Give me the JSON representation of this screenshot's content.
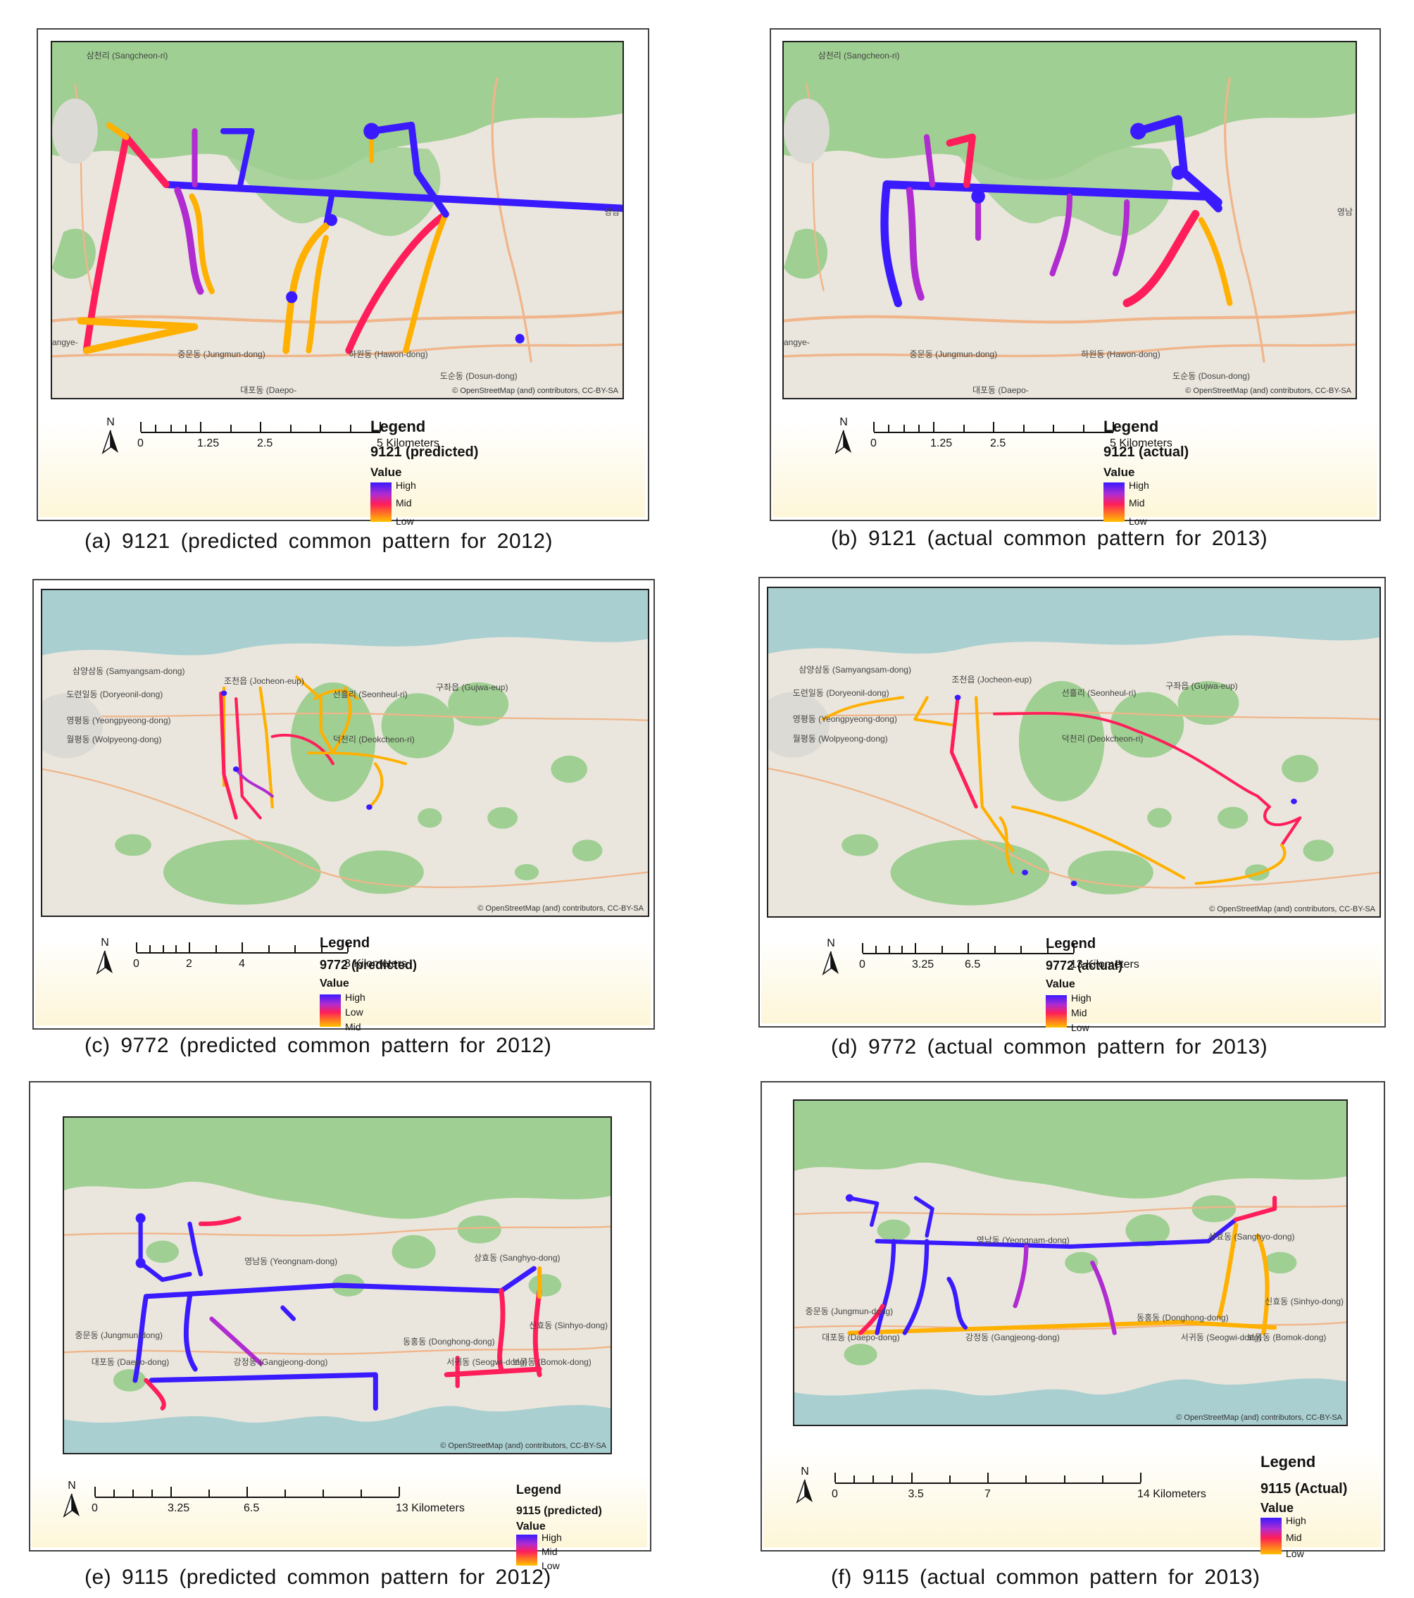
{
  "figures": [
    {
      "id": "a",
      "caption": "(a)  9121  (predicted  common  pattern  for  2012)",
      "legend_title": "Legend",
      "layer_name": "9121 (predicted)",
      "value_label": "Value",
      "ramp_labels": [
        "High",
        "Mid",
        "Low"
      ],
      "scale_labels": [
        "0",
        "1.25",
        "2.5",
        "5 Kilometers"
      ],
      "attribution": "© OpenStreetMap (and) contributors, CC-BY-SA",
      "places": [
        "삼천리 (Sangcheon-ri)",
        "중문동 (Jungmun-dong)",
        "하원동 (Hawon-dong)",
        "도순동 (Dosun-dong)",
        "대포동 (Daepo-",
        "영남",
        "angye-"
      ]
    },
    {
      "id": "b",
      "caption": "(b)  9121  (actual  common  pattern  for  2013)",
      "legend_title": "Legend",
      "layer_name": "9121 (actual)",
      "value_label": "Value",
      "ramp_labels": [
        "High",
        "Mid",
        "Low"
      ],
      "scale_labels": [
        "0",
        "1.25",
        "2.5",
        "5 Kilometers"
      ],
      "attribution": "© OpenStreetMap (and) contributors, CC-BY-SA",
      "places": [
        "삼천리 (Sangcheon-ri)",
        "중문동 (Jungmun-dong)",
        "하원동 (Hawon-dong)",
        "도순동 (Dosun-dong)",
        "대포동 (Daepo-",
        "영남",
        "angye-"
      ]
    },
    {
      "id": "c",
      "caption": "(c)  9772  (predicted  common  pattern  for  2012)",
      "legend_title": "Legend",
      "layer_name": "9772 (predicted)",
      "value_label": "Value",
      "ramp_labels": [
        "High",
        "Low",
        "Mid"
      ],
      "scale_labels": [
        "0",
        "2",
        "4",
        "8 Kilometers"
      ],
      "attribution": "© OpenStreetMap (and) contributors, CC-BY-SA",
      "places": [
        "삼양삼동 (Samyangsam-dong)",
        "도련일동 (Doryeonil-dong)",
        "영평동 (Yeongpyeong-dong)",
        "월평동 (Wolpyeong-dong)",
        "조천읍 (Jocheon-eup)",
        "구좌읍 (Gujwa-eup)",
        "선흘리 (Seonheul-ri)",
        "덕천리 (Deokcheon-ri)"
      ]
    },
    {
      "id": "d",
      "caption": "(d)  9772  (actual  common  pattern  for  2013)",
      "legend_title": "Legend",
      "layer_name": "9772 (actual)",
      "value_label": "Value",
      "ramp_labels": [
        "High",
        "Mid",
        "Low"
      ],
      "scale_labels": [
        "0",
        "3.25",
        "6.5",
        "13 Kilometers"
      ],
      "attribution": "© OpenStreetMap (and) contributors, CC-BY-SA",
      "places": [
        "삼양삼동 (Samyangsam-dong)",
        "도련일동 (Doryeonil-dong)",
        "영평동 (Yeongpyeong-dong)",
        "월평동 (Wolpyeong-dong)",
        "조천읍 (Jocheon-eup)",
        "구좌읍 (Gujwa-eup)",
        "선흘리 (Seonheul-ri)",
        "덕천리 (Deokcheon-ri)"
      ]
    },
    {
      "id": "e",
      "caption": "(e)  9115  (predicted  common  pattern  for  2012)",
      "legend_title": "Legend",
      "layer_name": "9115 (predicted)",
      "value_label": "Value",
      "ramp_labels": [
        "High",
        "Mid",
        "Low"
      ],
      "scale_labels": [
        "0",
        "3.25",
        "6.5",
        "13 Kilometers"
      ],
      "attribution": "© OpenStreetMap (and) contributors, CC-BY-SA",
      "places": [
        "영남동 (Yeongnam-dong)",
        "상효동 (Sanghyo-dong)",
        "중문동 (Jungmun-dong)",
        "대포동 (Daepo-dong)",
        "강정동 (Gangjeong-dong)",
        "서귀동 (Seogwi-dong)",
        "보목동 (Bomok-dong)",
        "신효동 (Sinhyo-dong)",
        "동홍동 (Donghong-dong)"
      ]
    },
    {
      "id": "f",
      "caption": "(f)  9115  (actual  common  pattern  for  2013)",
      "legend_title": "Legend",
      "layer_name": "9115 (Actual)",
      "value_label": "Value",
      "ramp_labels": [
        "High",
        "Mid",
        "Low"
      ],
      "scale_labels": [
        "0",
        "3.5",
        "7",
        "14 Kilometers"
      ],
      "attribution": "© OpenStreetMap (and) contributors, CC-BY-SA",
      "places": [
        "영남동 (Yeongnam-dong)",
        "상효동 (Sanghyo-dong)",
        "중문동 (Jungmun-dong)",
        "대포동 (Daepo-dong)",
        "강정동 (Gangjeong-dong)",
        "서귀동 (Seogwi-dong)",
        "보목동 (Bomok-dong)",
        "신효동 (Sinhyo-dong)",
        "동홍동 (Donghong-dong)"
      ]
    }
  ],
  "north_label": "N",
  "colors": {
    "high": "#3a1aff",
    "mid": "#ff1e5a",
    "low": "#ffb000",
    "forest": "#9fcf92",
    "land": "#eae6dd",
    "sea": "#aacfd0",
    "road": "#f0b58a"
  }
}
